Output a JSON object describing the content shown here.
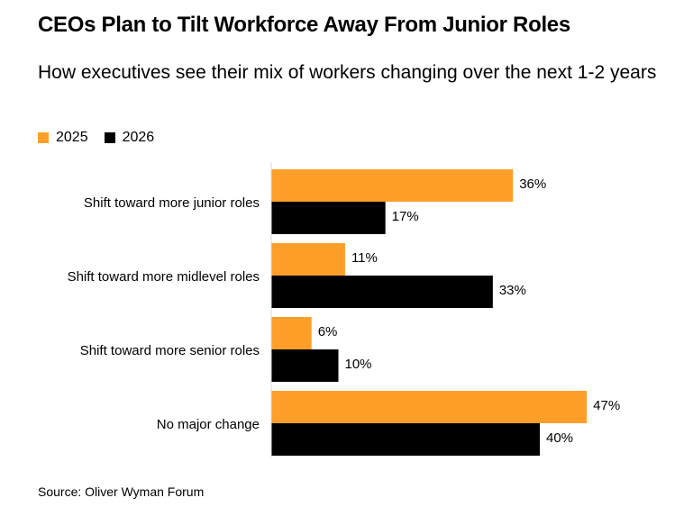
{
  "title": "CEOs Plan to Tilt Workforce Away From Junior Roles",
  "subtitle": "How executives see their mix of workers changing over the next 1-2 years",
  "source": "Source: Oliver Wyman Forum",
  "colors": {
    "2025": "#ff9f2a",
    "2026": "#000000"
  },
  "chart_data": {
    "type": "bar",
    "orientation": "horizontal",
    "categories": [
      "Shift toward more junior roles",
      "Shift toward more midlevel roles",
      "Shift toward more senior roles",
      "No major change"
    ],
    "series": [
      {
        "name": "2025",
        "values": [
          36,
          11,
          6,
          47
        ],
        "labels": [
          "36%",
          "11%",
          "6%",
          "47%"
        ]
      },
      {
        "name": "2026",
        "values": [
          17,
          33,
          10,
          40
        ],
        "labels": [
          "17%",
          "33%",
          "10%",
          "40%"
        ]
      }
    ],
    "xlim": [
      0,
      100
    ],
    "legend": "top-left",
    "grid": false
  }
}
